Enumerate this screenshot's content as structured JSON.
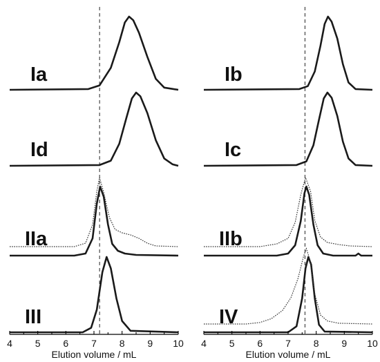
{
  "chart_data": [
    {
      "type": "line",
      "xlabel": "Elution volume / mL",
      "xlim": [
        4,
        10
      ],
      "xticks": [
        "4",
        "5",
        "6",
        "7",
        "8",
        "9",
        "10"
      ],
      "reference_line_x": 7.2,
      "grid": false,
      "traces": [
        {
          "label": "Ia",
          "style": "solid",
          "peak_x": 8.25,
          "baseline": "flat",
          "x": [
            4,
            6.8,
            7.2,
            7.6,
            7.9,
            8.1,
            8.25,
            8.4,
            8.6,
            8.9,
            9.2,
            9.5,
            10
          ],
          "y": [
            0,
            0.01,
            0.06,
            0.3,
            0.65,
            0.92,
            1.0,
            0.95,
            0.78,
            0.45,
            0.15,
            0.03,
            0
          ]
        },
        {
          "label": "Id",
          "style": "solid",
          "peak_x": 8.5,
          "baseline": "flat",
          "x": [
            4,
            7.2,
            7.6,
            7.9,
            8.15,
            8.35,
            8.5,
            8.65,
            8.9,
            9.2,
            9.5,
            9.8,
            10
          ],
          "y": [
            0,
            0.01,
            0.07,
            0.3,
            0.65,
            0.92,
            1.0,
            0.95,
            0.72,
            0.35,
            0.1,
            0.02,
            0
          ]
        },
        {
          "label": "IIa",
          "style": "solid",
          "peak_x": 7.22,
          "baseline": "flat",
          "x": [
            4,
            6.3,
            6.7,
            6.95,
            7.1,
            7.22,
            7.35,
            7.5,
            7.65,
            7.85,
            8.1,
            8.5,
            10
          ],
          "y": [
            0,
            0.0,
            0.03,
            0.25,
            0.75,
            1.0,
            0.85,
            0.45,
            0.17,
            0.07,
            0.03,
            0.01,
            0
          ]
        },
        {
          "label": "IIa",
          "style": "dotted",
          "peak_x": 7.2,
          "baseline": "offset",
          "x": [
            4,
            6.3,
            6.7,
            6.95,
            7.1,
            7.2,
            7.35,
            7.55,
            7.75,
            8.0,
            8.3,
            8.6,
            8.9,
            9.2,
            10
          ],
          "y": [
            0,
            0.0,
            0.05,
            0.32,
            0.8,
            1.0,
            0.78,
            0.42,
            0.25,
            0.2,
            0.17,
            0.12,
            0.05,
            0.01,
            0
          ]
        },
        {
          "label": "III",
          "style": "solid",
          "peak_x": 7.45,
          "baseline": "flat",
          "x": [
            4,
            6.6,
            6.9,
            7.1,
            7.3,
            7.45,
            7.6,
            7.8,
            8.0,
            8.3,
            10
          ],
          "y": [
            0,
            0.0,
            0.06,
            0.3,
            0.8,
            1.0,
            0.85,
            0.45,
            0.15,
            0.02,
            0
          ]
        }
      ],
      "labels": [
        "Ia",
        "Id",
        "IIa",
        "III"
      ]
    },
    {
      "type": "line",
      "xlabel": "Elution volume / mL",
      "xlim": [
        4,
        10
      ],
      "xticks": [
        "4",
        "5",
        "6",
        "7",
        "8",
        "9",
        "10"
      ],
      "reference_line_x": 7.6,
      "grid": false,
      "traces": [
        {
          "label": "Ib",
          "style": "solid",
          "peak_x": 8.42,
          "baseline": "flat",
          "x": [
            4,
            7.4,
            7.7,
            7.95,
            8.15,
            8.3,
            8.42,
            8.55,
            8.75,
            8.95,
            9.15,
            9.4,
            10
          ],
          "y": [
            0,
            0.01,
            0.05,
            0.25,
            0.6,
            0.9,
            1.0,
            0.93,
            0.7,
            0.35,
            0.1,
            0.01,
            0
          ]
        },
        {
          "label": "Ic",
          "style": "solid",
          "peak_x": 8.4,
          "baseline": "flat",
          "x": [
            4,
            7.3,
            7.65,
            7.9,
            8.1,
            8.27,
            8.4,
            8.55,
            8.75,
            8.95,
            9.15,
            9.4,
            10
          ],
          "y": [
            0,
            0.01,
            0.06,
            0.28,
            0.63,
            0.92,
            1.0,
            0.93,
            0.68,
            0.33,
            0.1,
            0.01,
            0
          ]
        },
        {
          "label": "IIb",
          "style": "solid",
          "peak_x": 7.65,
          "baseline": "flat",
          "x": [
            4,
            6.6,
            7.0,
            7.25,
            7.45,
            7.58,
            7.65,
            7.75,
            7.9,
            8.05,
            8.25,
            8.6,
            9.4,
            9.5,
            9.6,
            10
          ],
          "y": [
            0,
            0.0,
            0.03,
            0.15,
            0.5,
            0.9,
            1.0,
            0.88,
            0.45,
            0.15,
            0.03,
            0.0,
            0.0,
            0.03,
            0.0,
            0
          ]
        },
        {
          "label": "IIb",
          "style": "dotted",
          "peak_x": 7.62,
          "baseline": "offset",
          "x": [
            4,
            6.0,
            6.6,
            7.0,
            7.25,
            7.45,
            7.62,
            7.8,
            7.95,
            8.15,
            8.4,
            8.8,
            9.2,
            10
          ],
          "y": [
            0,
            0.0,
            0.04,
            0.12,
            0.35,
            0.75,
            1.0,
            0.8,
            0.38,
            0.14,
            0.06,
            0.03,
            0.01,
            0
          ]
        },
        {
          "label": "IV",
          "style": "solid",
          "peak_x": 7.72,
          "baseline": "flat",
          "x": [
            4,
            7.0,
            7.3,
            7.5,
            7.62,
            7.72,
            7.82,
            7.95,
            8.1,
            8.3,
            10
          ],
          "y": [
            0,
            0.0,
            0.08,
            0.45,
            0.85,
            1.0,
            0.9,
            0.45,
            0.1,
            0.01,
            0
          ]
        },
        {
          "label": "IV",
          "style": "dotted",
          "peak_x": 7.65,
          "baseline": "offset",
          "x": [
            4,
            5.5,
            6.0,
            6.4,
            6.8,
            7.1,
            7.35,
            7.55,
            7.65,
            7.78,
            7.95,
            8.15,
            8.4,
            8.8,
            10
          ],
          "y": [
            0,
            0.0,
            0.02,
            0.07,
            0.18,
            0.35,
            0.6,
            0.9,
            1.0,
            0.85,
            0.4,
            0.12,
            0.04,
            0.01,
            0
          ]
        }
      ],
      "labels": [
        "Ib",
        "Ic",
        "IIb",
        "IV"
      ]
    }
  ]
}
